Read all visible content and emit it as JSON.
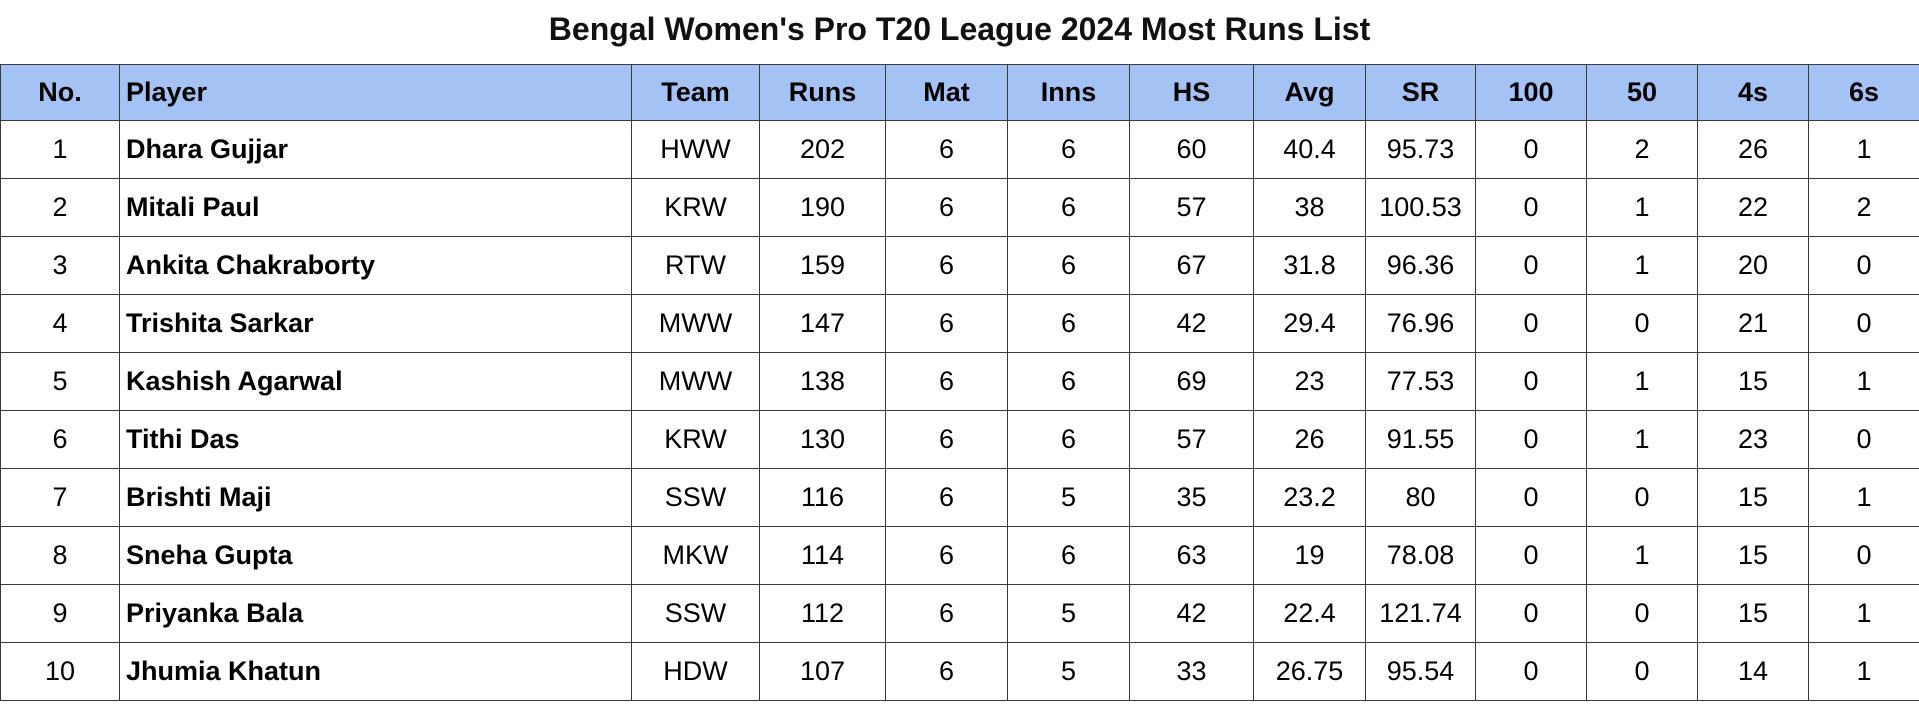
{
  "title": "Bengal Women's Pro T20 League 2024 Most Runs List",
  "columns": [
    "No.",
    "Player",
    "Team",
    "Runs",
    "Mat",
    "Inns",
    "HS",
    "Avg",
    "SR",
    "100",
    "50",
    "4s",
    "6s"
  ],
  "rows": [
    [
      "1",
      "Dhara Gujjar",
      "HWW",
      "202",
      "6",
      "6",
      "60",
      "40.4",
      "95.73",
      "0",
      "2",
      "26",
      "1"
    ],
    [
      "2",
      "Mitali Paul",
      "KRW",
      "190",
      "6",
      "6",
      "57",
      "38",
      "100.53",
      "0",
      "1",
      "22",
      "2"
    ],
    [
      "3",
      "Ankita Chakraborty",
      "RTW",
      "159",
      "6",
      "6",
      "67",
      "31.8",
      "96.36",
      "0",
      "1",
      "20",
      "0"
    ],
    [
      "4",
      "Trishita Sarkar",
      "MWW",
      "147",
      "6",
      "6",
      "42",
      "29.4",
      "76.96",
      "0",
      "0",
      "21",
      "0"
    ],
    [
      "5",
      "Kashish Agarwal",
      "MWW",
      "138",
      "6",
      "6",
      "69",
      "23",
      "77.53",
      "0",
      "1",
      "15",
      "1"
    ],
    [
      "6",
      "Tithi Das",
      "KRW",
      "130",
      "6",
      "6",
      "57",
      "26",
      "91.55",
      "0",
      "1",
      "23",
      "0"
    ],
    [
      "7",
      "Brishti Maji",
      "SSW",
      "116",
      "6",
      "5",
      "35",
      "23.2",
      "80",
      "0",
      "0",
      "15",
      "1"
    ],
    [
      "8",
      "Sneha Gupta",
      "MKW",
      "114",
      "6",
      "6",
      "63",
      "19",
      "78.08",
      "0",
      "1",
      "15",
      "0"
    ],
    [
      "9",
      "Priyanka Bala",
      "SSW",
      "112",
      "6",
      "5",
      "42",
      "22.4",
      "121.74",
      "0",
      "0",
      "15",
      "1"
    ],
    [
      "10",
      "Jhumia Khatun",
      "HDW",
      "107",
      "6",
      "5",
      "33",
      "26.75",
      "95.54",
      "0",
      "0",
      "14",
      "1"
    ]
  ],
  "colors": {
    "header_background": "#a4c2f4",
    "border": "#3a3a3a",
    "page_background": "#ffffff"
  }
}
